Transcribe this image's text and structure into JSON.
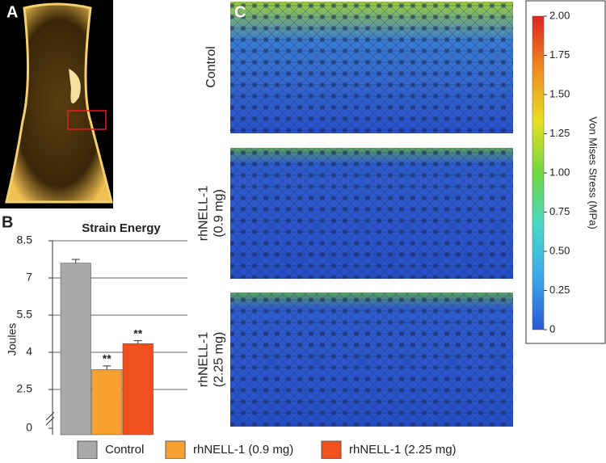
{
  "panels": {
    "a": "A",
    "b": "B",
    "c": "C",
    "rows": [
      [
        "Control"
      ],
      [
        "rhNELL-1",
        "(0.9 mg)"
      ],
      [
        "rhNELL-1",
        "(2.25 mg)"
      ]
    ]
  },
  "chart_data": [
    {
      "type": "bar",
      "title": "Strain Energy",
      "y_label": "Joules",
      "ylim": [
        0,
        8.5
      ],
      "y_break": [
        0,
        1
      ],
      "yticks": [
        0,
        2.5,
        4.0,
        5.5,
        7.0,
        8.5
      ],
      "grid": true,
      "series": [
        {
          "name": "Control",
          "color": "#a9a9a9",
          "values": [
            7.6
          ],
          "errors": [
            0.15
          ]
        },
        {
          "name": "rhNELL-1 (0.9 mg)",
          "color": "#f7a133",
          "values": [
            3.3
          ],
          "errors": [
            0.15
          ],
          "annotations": [
            "**"
          ]
        },
        {
          "name": "rhNELL-1 (2.25 mg)",
          "color": "#f2511d",
          "values": [
            4.35
          ],
          "errors": [
            0.12
          ],
          "annotations": [
            "**"
          ]
        }
      ],
      "legend": "bottom"
    },
    {
      "type": "colorbar",
      "y_label": "Von Mises Stress (MPa)",
      "ylim": [
        0,
        2
      ],
      "yticks": [
        {
          "value": 2,
          "label": "2.00"
        },
        {
          "value": 1.75,
          "label": "1.75"
        },
        {
          "value": 1.5,
          "label": "1.50"
        },
        {
          "value": 1.25,
          "label": "1.25"
        },
        {
          "value": 1,
          "label": "1.00"
        },
        {
          "value": 0.75,
          "label": "0.75"
        },
        {
          "value": 0.5,
          "label": "0.50"
        },
        {
          "value": 0.25,
          "label": "0.25"
        },
        0
      ],
      "colormap": [
        "#2a58d8",
        "#3aa8e8",
        "#49d8c8",
        "#70d840",
        "#e8e020",
        "#f08a20",
        "#e02222"
      ]
    }
  ]
}
